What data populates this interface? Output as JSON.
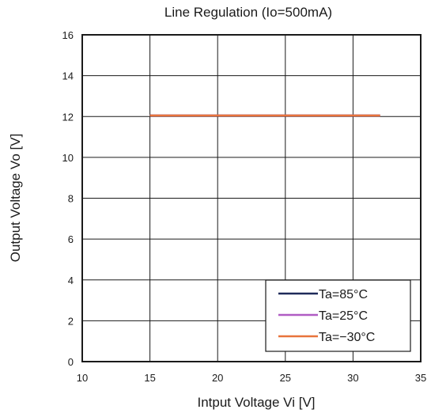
{
  "chart_data": {
    "type": "line",
    "title": "Line Regulation (Io=500mA)",
    "xlabel": "Intput Voltage Vi [V]",
    "ylabel": "Output Voltage Vo [V]",
    "xlim": [
      10,
      35
    ],
    "ylim": [
      0,
      16
    ],
    "xticks": [
      10,
      15,
      20,
      25,
      30,
      35
    ],
    "yticks": [
      0,
      2,
      4,
      6,
      8,
      10,
      12,
      14,
      16
    ],
    "grid": true,
    "legend_position": "bottom-right",
    "series": [
      {
        "name": "Ta=85°C",
        "color": "#1f2a5a",
        "x": [
          15,
          20,
          25,
          30,
          32
        ],
        "y": [
          12.05,
          12.05,
          12.05,
          12.05,
          12.05
        ]
      },
      {
        "name": "Ta=25°C",
        "color": "#b05cc4",
        "x": [
          15,
          20,
          25,
          30,
          32
        ],
        "y": [
          12.05,
          12.05,
          12.05,
          12.05,
          12.05
        ]
      },
      {
        "name": "Ta=−30°C",
        "color": "#e8743b",
        "x": [
          15,
          20,
          25,
          30,
          32
        ],
        "y": [
          12.05,
          12.05,
          12.05,
          12.05,
          12.05
        ]
      }
    ]
  }
}
